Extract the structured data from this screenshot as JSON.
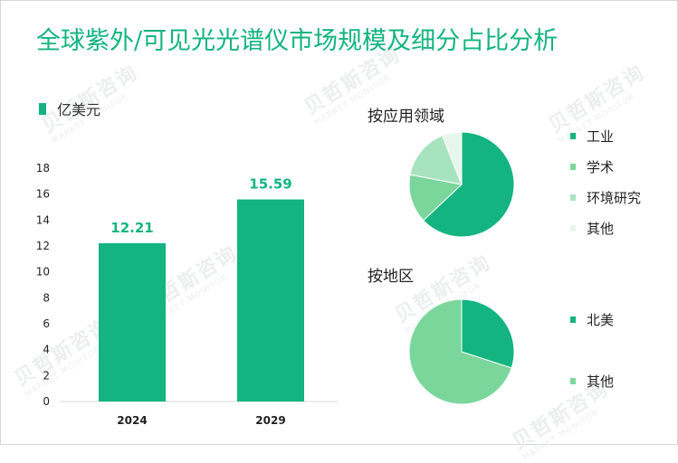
{
  "title": "全球紫外/可见光光谱仪市场规模及细分占比分析",
  "watermark": {
    "cn": "贝哲斯咨询",
    "en": "MARKET MONITOR"
  },
  "colors": {
    "accent": "#13b47f",
    "bar": "#13b47f",
    "label": "#13b47f"
  },
  "chart_data": [
    {
      "type": "bar",
      "categories": [
        "2024",
        "2029"
      ],
      "series": [
        {
          "name": "亿美元",
          "values": [
            12.21,
            15.59
          ]
        }
      ],
      "data_labels": [
        "12.21",
        "15.59"
      ],
      "ylim": [
        0,
        18
      ],
      "yticks": [
        0,
        2,
        4,
        6,
        8,
        10,
        12,
        14,
        16,
        18
      ],
      "legend": "top-left"
    },
    {
      "type": "pie",
      "title": "按应用领域",
      "labels": [
        "工业",
        "学术",
        "环境研究",
        "其他"
      ],
      "values": [
        63,
        15,
        16,
        6
      ],
      "colors": [
        "#13b47f",
        "#7bd69c",
        "#a8e3bf",
        "#e6f6ec"
      ],
      "legend": "right"
    },
    {
      "type": "pie",
      "title": "按地区",
      "labels": [
        "北美",
        "其他"
      ],
      "values": [
        30,
        70
      ],
      "colors": [
        "#13b47f",
        "#7bd69c"
      ],
      "legend": "right"
    }
  ]
}
